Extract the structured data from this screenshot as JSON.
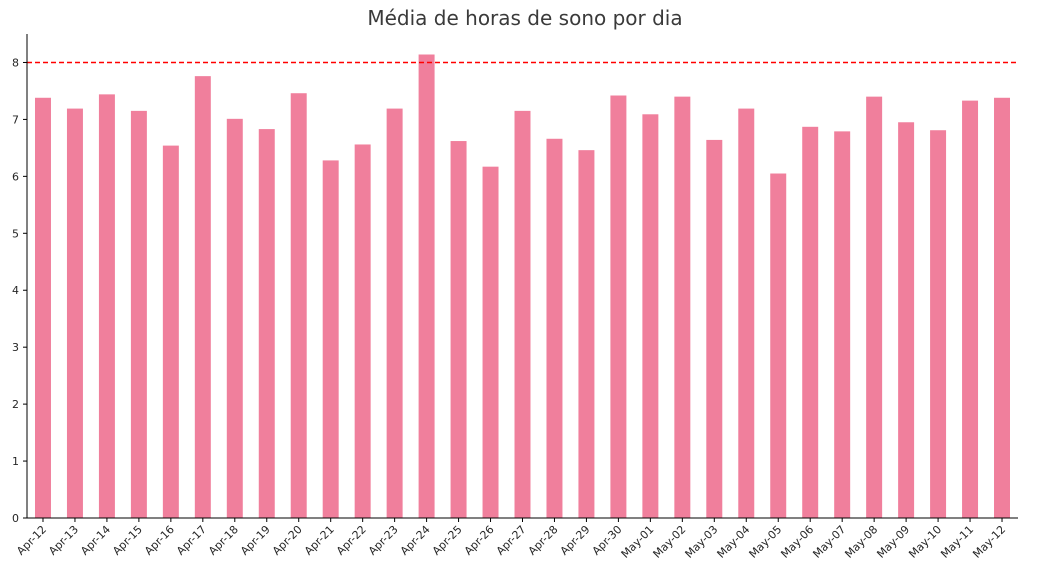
{
  "chart_data": {
    "type": "bar",
    "title": "Média de horas de sono por dia",
    "xlabel": "",
    "ylabel": "",
    "categories": [
      "Apr-12",
      "Apr-13",
      "Apr-14",
      "Apr-15",
      "Apr-16",
      "Apr-17",
      "Apr-18",
      "Apr-19",
      "Apr-20",
      "Apr-21",
      "Apr-22",
      "Apr-23",
      "Apr-24",
      "Apr-25",
      "Apr-26",
      "Apr-27",
      "Apr-28",
      "Apr-29",
      "Apr-30",
      "May-01",
      "May-02",
      "May-03",
      "May-04",
      "May-05",
      "May-06",
      "May-07",
      "May-08",
      "May-09",
      "May-10",
      "May-11",
      "May-12"
    ],
    "values": [
      7.38,
      7.19,
      7.44,
      7.15,
      6.54,
      7.76,
      7.01,
      6.83,
      7.46,
      6.28,
      6.56,
      7.19,
      8.14,
      6.62,
      6.17,
      7.15,
      6.66,
      6.46,
      7.42,
      7.09,
      7.4,
      6.64,
      7.19,
      6.05,
      6.87,
      6.79,
      7.4,
      6.95,
      6.81,
      7.33,
      7.38
    ],
    "ylim": [
      0,
      8.5
    ],
    "yticks": [
      0,
      1,
      2,
      3,
      4,
      5,
      6,
      7,
      8
    ],
    "reference_line": {
      "value": 8,
      "style": "dashed",
      "color": "#ff0000"
    },
    "bar_color": "#f07f9c",
    "grid": false,
    "legend": "none"
  }
}
